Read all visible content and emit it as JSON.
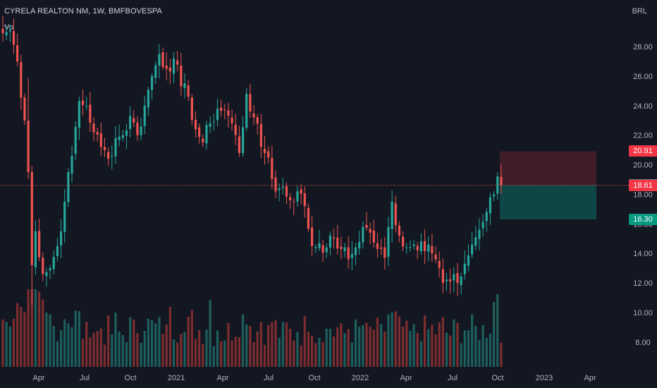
{
  "header": {
    "symbol_line": "CYRELA REALTON NM, 1W, BMFBOVESPA",
    "volume_label": "Vo",
    "currency": "BRL"
  },
  "colors": {
    "background": "#131722",
    "up": "#26a69a",
    "down": "#ef5350",
    "volume_up": "#1d5f5c",
    "volume_down": "#7e2d2f",
    "text": "#b2b5be",
    "stop_zone": "#f2364533",
    "target_zone": "#0898815c"
  },
  "chart_data": {
    "type": "candlestick",
    "title": "CYRELA REALTON NM, 1W, BMFBOVESPA",
    "currency": "BRL",
    "interval": "1W",
    "y_axis": {
      "ticks": [
        "28.00",
        "26.00",
        "24.00",
        "22.00",
        "20.00",
        "18.00",
        "16.00",
        "14.00",
        "12.00",
        "10.00",
        "8.00"
      ],
      "ylim": [
        6.9,
        29.6
      ]
    },
    "x_axis": {
      "ticks": [
        "Apr",
        "Jul",
        "Oct",
        "2021",
        "Apr",
        "Jul",
        "Oct",
        "2022",
        "Apr",
        "Jul",
        "Oct",
        "2023",
        "Apr"
      ]
    },
    "grid": false,
    "last_price": 18.61,
    "price_labels": [
      {
        "value": "20.91",
        "kind": "stop"
      },
      {
        "value": "18.63",
        "kind": "entry"
      },
      {
        "value": "18.61",
        "kind": "last"
      },
      {
        "value": "16.30",
        "kind": "target"
      }
    ],
    "position_tool": {
      "entry": 18.63,
      "stop": 20.91,
      "target": 16.3,
      "direction": "short"
    },
    "price_anchors": [
      [
        0,
        28.9
      ],
      [
        2,
        29.1
      ],
      [
        4,
        27.0
      ],
      [
        6,
        23.0
      ],
      [
        7,
        19.5
      ],
      [
        8,
        13.2
      ],
      [
        9,
        15.5
      ],
      [
        11,
        12.6
      ],
      [
        13,
        13.0
      ],
      [
        15,
        14.5
      ],
      [
        17,
        17.5
      ],
      [
        19,
        20.6
      ],
      [
        21,
        24.3
      ],
      [
        23,
        24.0
      ],
      [
        25,
        22.2
      ],
      [
        27,
        21.2
      ],
      [
        29,
        20.4
      ],
      [
        31,
        21.8
      ],
      [
        33,
        22.0
      ],
      [
        35,
        23.3
      ],
      [
        37,
        22.0
      ],
      [
        39,
        24.0
      ],
      [
        41,
        26.0
      ],
      [
        43,
        27.5
      ],
      [
        45,
        26.5
      ],
      [
        47,
        27.2
      ],
      [
        49,
        25.3
      ],
      [
        51,
        24.6
      ],
      [
        53,
        22.4
      ],
      [
        55,
        21.5
      ],
      [
        57,
        22.8
      ],
      [
        59,
        23.8
      ],
      [
        61,
        23.7
      ],
      [
        63,
        22.8
      ],
      [
        65,
        20.8
      ],
      [
        67,
        24.8
      ],
      [
        69,
        23.2
      ],
      [
        71,
        21.2
      ],
      [
        73,
        20.5
      ],
      [
        75,
        18.2
      ],
      [
        77,
        18.5
      ],
      [
        79,
        17.6
      ],
      [
        81,
        18.2
      ],
      [
        83,
        17.2
      ],
      [
        85,
        14.5
      ],
      [
        87,
        14.7
      ],
      [
        89,
        14.4
      ],
      [
        91,
        15.0
      ],
      [
        93,
        14.3
      ],
      [
        95,
        13.6
      ],
      [
        97,
        14.4
      ],
      [
        99,
        15.8
      ],
      [
        101,
        15.4
      ],
      [
        103,
        14.3
      ],
      [
        105,
        13.7
      ],
      [
        107,
        17.5
      ],
      [
        109,
        15.2
      ],
      [
        111,
        14.4
      ],
      [
        113,
        14.6
      ],
      [
        115,
        14.8
      ],
      [
        117,
        14.6
      ],
      [
        119,
        13.6
      ],
      [
        121,
        12.0
      ],
      [
        123,
        12.1
      ],
      [
        125,
        12.0
      ],
      [
        127,
        13.3
      ],
      [
        129,
        14.6
      ],
      [
        131,
        15.6
      ],
      [
        133,
        16.8
      ],
      [
        135,
        18.0
      ],
      [
        136,
        19.2
      ],
      [
        137,
        18.61
      ]
    ]
  }
}
